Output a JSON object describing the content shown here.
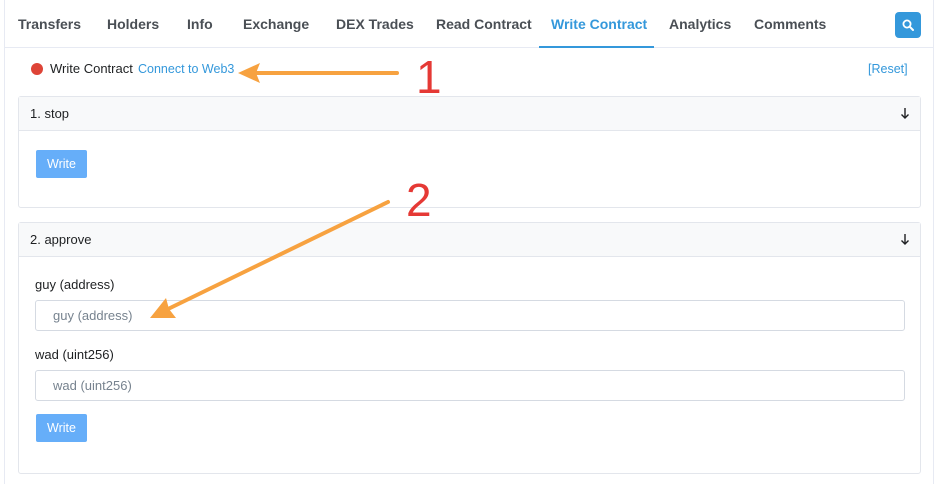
{
  "tabs": [
    {
      "label": "Transfers",
      "active": false
    },
    {
      "label": "Holders",
      "active": false
    },
    {
      "label": "Info",
      "active": false
    },
    {
      "label": "Exchange",
      "active": false
    },
    {
      "label": "DEX Trades",
      "active": false
    },
    {
      "label": "Read Contract",
      "active": false
    },
    {
      "label": "Write Contract",
      "active": true
    },
    {
      "label": "Analytics",
      "active": false
    },
    {
      "label": "Comments",
      "active": false
    }
  ],
  "search": {
    "icon": "search-icon"
  },
  "status": {
    "label": "Write Contract",
    "connect_link": "Connect to Web3",
    "reset_link": "[Reset]",
    "dot_color": "#de4437"
  },
  "functions": [
    {
      "title": "1. stop",
      "toggle_icon": "arrow-down-icon",
      "inputs": [],
      "write_label": "Write"
    },
    {
      "title": "2. approve",
      "toggle_icon": "arrow-down-icon",
      "inputs": [
        {
          "label": "guy (address)",
          "placeholder": "guy (address)",
          "value": ""
        },
        {
          "label": "wad (uint256)",
          "placeholder": "wad (uint256)",
          "value": ""
        }
      ],
      "write_label": "Write"
    }
  ],
  "annotations": [
    {
      "number": "1",
      "color": "#e53935"
    },
    {
      "number": "2",
      "color": "#e53935"
    }
  ],
  "colors": {
    "accent": "#3498db",
    "write_button": "#66aef9",
    "arrow": "#f7a240"
  }
}
